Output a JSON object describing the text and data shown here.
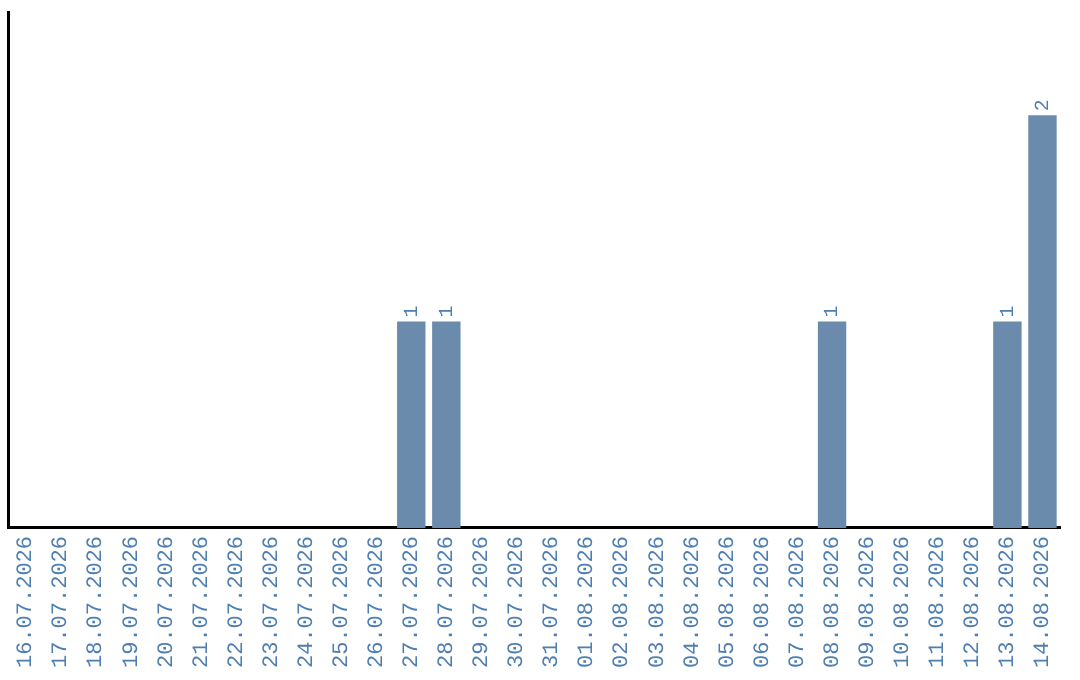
{
  "chart_data": {
    "type": "bar",
    "categories": [
      "16.07.2026",
      "17.07.2026",
      "18.07.2026",
      "19.07.2026",
      "20.07.2026",
      "21.07.2026",
      "22.07.2026",
      "23.07.2026",
      "24.07.2026",
      "25.07.2026",
      "26.07.2026",
      "27.07.2026",
      "28.07.2026",
      "29.07.2026",
      "30.07.2026",
      "31.07.2026",
      "01.08.2026",
      "02.08.2026",
      "03.08.2026",
      "04.08.2026",
      "05.08.2026",
      "06.08.2026",
      "07.08.2026",
      "08.08.2026",
      "09.08.2026",
      "10.08.2026",
      "11.08.2026",
      "12.08.2026",
      "13.08.2026",
      "14.08.2026"
    ],
    "values": [
      0,
      0,
      0,
      0,
      0,
      0,
      0,
      0,
      0,
      0,
      0,
      1,
      1,
      0,
      0,
      0,
      0,
      0,
      0,
      0,
      0,
      0,
      0,
      1,
      0,
      0,
      0,
      0,
      1,
      2
    ],
    "value_labels": [
      null,
      null,
      null,
      null,
      null,
      null,
      null,
      null,
      null,
      null,
      null,
      "1",
      "1",
      null,
      null,
      null,
      null,
      null,
      null,
      null,
      null,
      null,
      null,
      "1",
      null,
      null,
      null,
      null,
      "1",
      "2"
    ],
    "color": "#6a8bab",
    "tick_labels": "x",
    "grid": false,
    "legend": false
  }
}
